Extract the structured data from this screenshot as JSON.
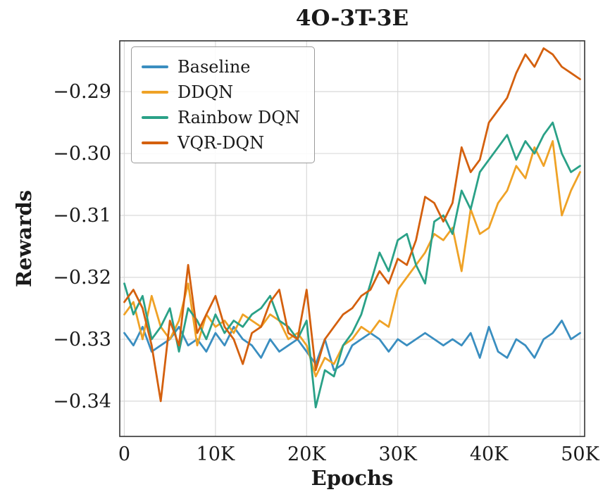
{
  "chart_data": {
    "type": "line",
    "title": "4O-3T-3E",
    "xlabel": "Epochs",
    "ylabel": "Rewards",
    "x_unit": "thousands of epochs",
    "grid": true,
    "legend_position": "upper left",
    "xlim": [
      -0.5,
      50.5
    ],
    "ylim": [
      -0.3457,
      -0.2818
    ],
    "xticks": {
      "values": [
        0,
        10,
        20,
        30,
        40,
        50
      ],
      "labels": [
        "0",
        "10K",
        "20K",
        "30K",
        "40K",
        "50K"
      ]
    },
    "yticks": {
      "values": [
        -0.29,
        -0.3,
        -0.31,
        -0.32,
        -0.33,
        -0.34
      ],
      "labels": [
        "−0.29",
        "−0.30",
        "−0.31",
        "−0.32",
        "−0.33",
        "−0.34"
      ]
    },
    "colors": {
      "grid": "#d9d9d9",
      "frame": "#333333",
      "text": "#1a1a1a"
    },
    "x": [
      0,
      1,
      2,
      3,
      4,
      5,
      6,
      7,
      8,
      9,
      10,
      11,
      12,
      13,
      14,
      15,
      16,
      17,
      18,
      19,
      20,
      21,
      22,
      23,
      24,
      25,
      26,
      27,
      28,
      29,
      30,
      31,
      32,
      33,
      34,
      35,
      36,
      37,
      38,
      39,
      40,
      41,
      42,
      43,
      44,
      45,
      46,
      47,
      48,
      49,
      50
    ],
    "series": [
      {
        "name": "Baseline",
        "color": "#3a8ec0",
        "values": [
          -0.329,
          -0.331,
          -0.328,
          -0.332,
          -0.331,
          -0.33,
          -0.328,
          -0.331,
          -0.33,
          -0.332,
          -0.329,
          -0.331,
          -0.328,
          -0.33,
          -0.331,
          -0.333,
          -0.33,
          -0.332,
          -0.331,
          -0.33,
          -0.332,
          -0.334,
          -0.33,
          -0.335,
          -0.334,
          -0.331,
          -0.33,
          -0.329,
          -0.33,
          -0.332,
          -0.33,
          -0.331,
          -0.33,
          -0.329,
          -0.33,
          -0.331,
          -0.33,
          -0.331,
          -0.329,
          -0.333,
          -0.328,
          -0.332,
          -0.333,
          -0.33,
          -0.331,
          -0.333,
          -0.33,
          -0.329,
          -0.327,
          -0.33,
          -0.329
        ]
      },
      {
        "name": "DDQN",
        "color": "#efa226",
        "values": [
          -0.326,
          -0.324,
          -0.33,
          -0.323,
          -0.328,
          -0.33,
          -0.327,
          -0.321,
          -0.331,
          -0.326,
          -0.328,
          -0.327,
          -0.329,
          -0.326,
          -0.327,
          -0.328,
          -0.326,
          -0.327,
          -0.33,
          -0.329,
          -0.331,
          -0.336,
          -0.333,
          -0.334,
          -0.331,
          -0.33,
          -0.328,
          -0.329,
          -0.327,
          -0.328,
          -0.322,
          -0.32,
          -0.318,
          -0.316,
          -0.313,
          -0.314,
          -0.312,
          -0.319,
          -0.309,
          -0.313,
          -0.312,
          -0.308,
          -0.306,
          -0.302,
          -0.304,
          -0.299,
          -0.302,
          -0.298,
          -0.31,
          -0.306,
          -0.303
        ]
      },
      {
        "name": "Rainbow DQN",
        "color": "#2aa187",
        "values": [
          -0.321,
          -0.326,
          -0.323,
          -0.33,
          -0.328,
          -0.325,
          -0.332,
          -0.325,
          -0.327,
          -0.33,
          -0.326,
          -0.329,
          -0.327,
          -0.328,
          -0.326,
          -0.325,
          -0.323,
          -0.327,
          -0.328,
          -0.33,
          -0.327,
          -0.341,
          -0.335,
          -0.336,
          -0.331,
          -0.329,
          -0.326,
          -0.321,
          -0.316,
          -0.319,
          -0.314,
          -0.313,
          -0.318,
          -0.321,
          -0.311,
          -0.31,
          -0.313,
          -0.306,
          -0.309,
          -0.303,
          -0.301,
          -0.299,
          -0.297,
          -0.301,
          -0.298,
          -0.3,
          -0.297,
          -0.295,
          -0.3,
          -0.303,
          -0.302
        ]
      },
      {
        "name": "VQR-DQN",
        "color": "#d4600e",
        "values": [
          -0.324,
          -0.322,
          -0.325,
          -0.331,
          -0.34,
          -0.327,
          -0.331,
          -0.318,
          -0.329,
          -0.326,
          -0.323,
          -0.328,
          -0.33,
          -0.334,
          -0.329,
          -0.328,
          -0.324,
          -0.322,
          -0.329,
          -0.33,
          -0.322,
          -0.335,
          -0.33,
          -0.328,
          -0.326,
          -0.325,
          -0.323,
          -0.322,
          -0.319,
          -0.321,
          -0.317,
          -0.318,
          -0.314,
          -0.307,
          -0.308,
          -0.311,
          -0.308,
          -0.299,
          -0.303,
          -0.301,
          -0.295,
          -0.293,
          -0.291,
          -0.287,
          -0.284,
          -0.286,
          -0.283,
          -0.284,
          -0.286,
          -0.287,
          -0.288
        ]
      }
    ]
  }
}
